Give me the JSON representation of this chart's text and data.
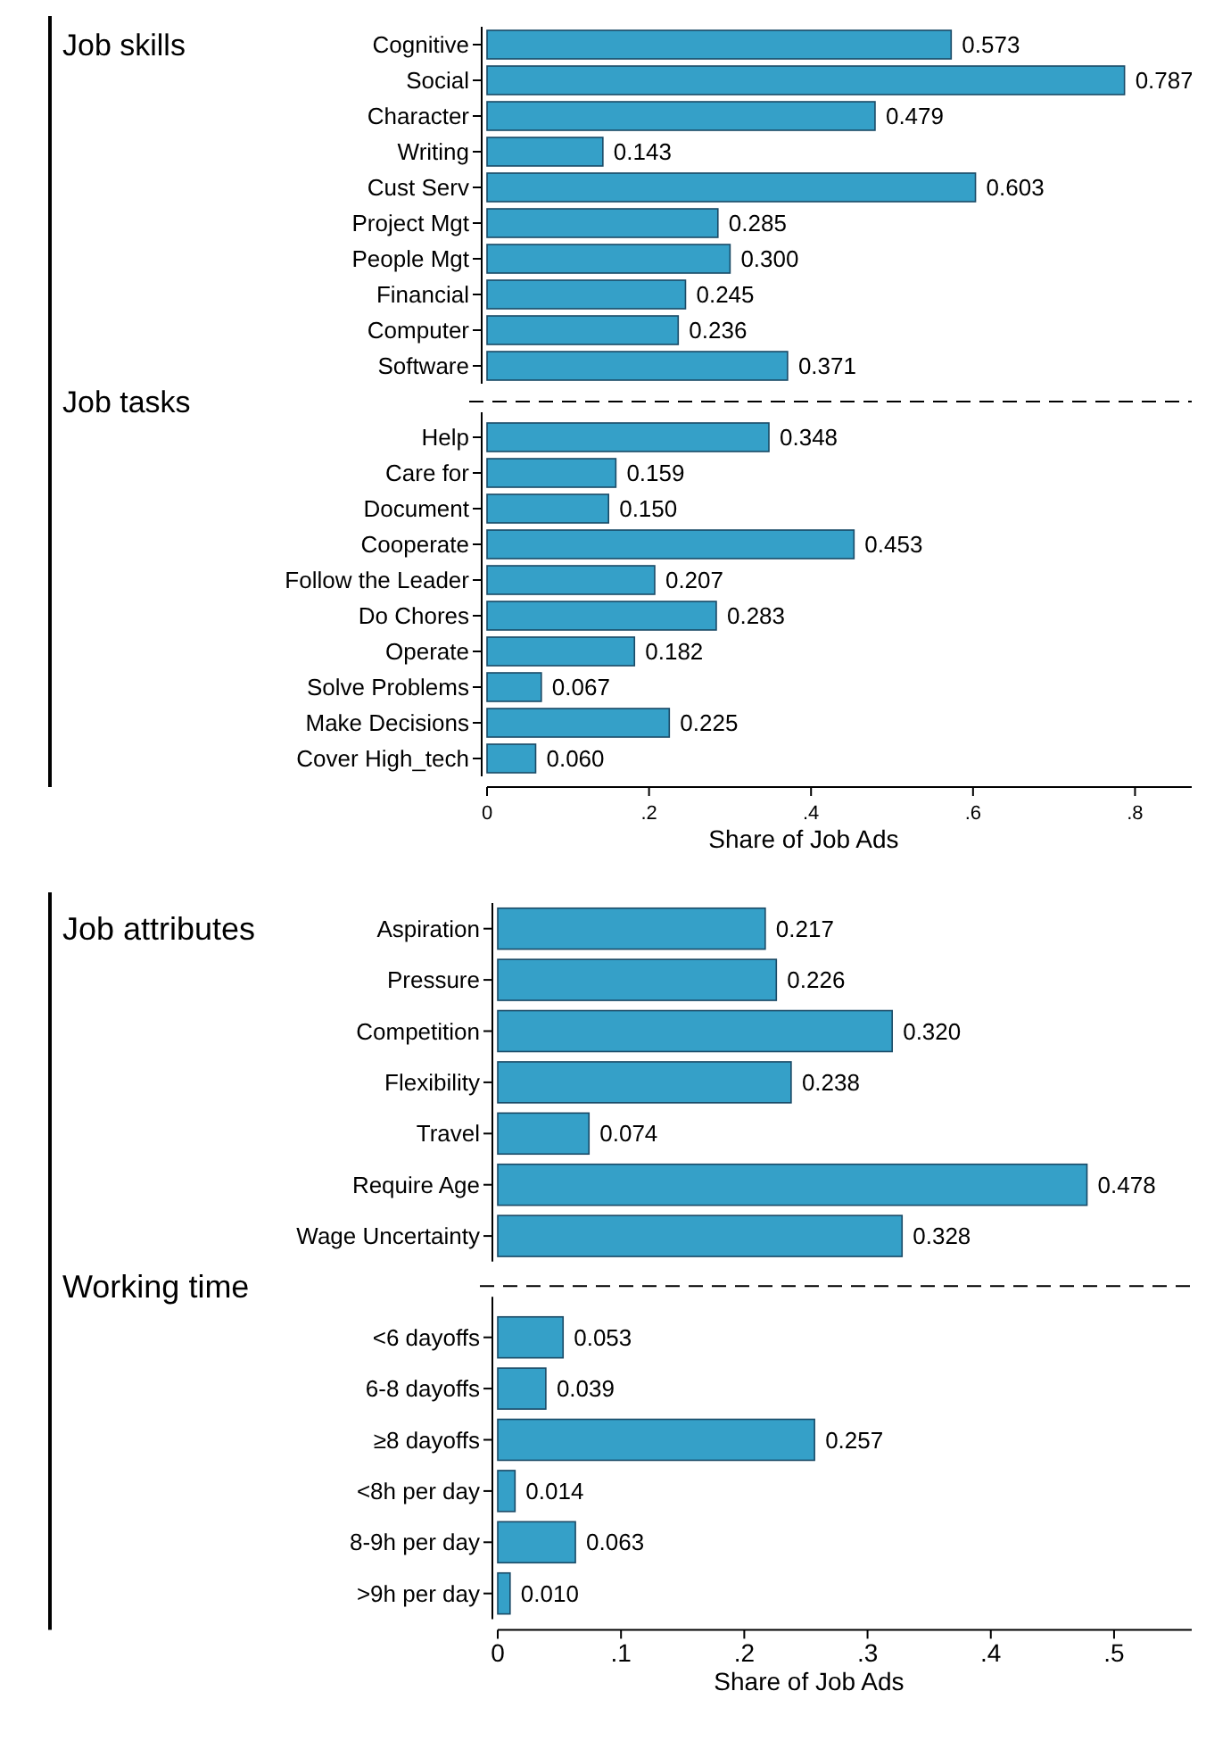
{
  "chart_data": [
    {
      "type": "bar",
      "orientation": "horizontal",
      "title": "Job skills",
      "color": "#35a0c8",
      "tick_labels": "y",
      "categories": [
        "Cognitive",
        "Social",
        "Character",
        "Writing",
        "Cust Serv",
        "Project Mgt",
        "People Mgt",
        "Financial",
        "Computer",
        "Software"
      ],
      "values": [
        0.573,
        0.787,
        0.479,
        0.143,
        0.603,
        0.285,
        0.3,
        0.245,
        0.236,
        0.371
      ],
      "value_labels": [
        "0.573",
        "0.787",
        "0.479",
        "0.143",
        "0.603",
        "0.285",
        "0.300",
        "0.245",
        "0.236",
        "0.371"
      ]
    },
    {
      "type": "bar",
      "orientation": "horizontal",
      "title": "Job tasks",
      "xlabel": "Share of Job Ads",
      "color": "#35a0c8",
      "xlim": [
        0,
        0.87
      ],
      "xticks": [
        0,
        {
          "value": 0.2,
          "label": ".2"
        },
        {
          "value": 0.4,
          "label": ".4"
        },
        {
          "value": 0.6,
          "label": ".6"
        },
        {
          "value": 0.8,
          "label": ".8"
        }
      ],
      "categories": [
        "Help",
        "Care for",
        "Document",
        "Cooperate",
        "Follow the Leader",
        "Do Chores",
        "Operate",
        "Solve Problems",
        "Make Decisions",
        "Cover High_tech"
      ],
      "values": [
        0.348,
        0.159,
        0.15,
        0.453,
        0.207,
        0.283,
        0.182,
        0.067,
        0.225,
        0.06
      ],
      "value_labels": [
        "0.348",
        "0.159",
        "0.150",
        "0.453",
        "0.207",
        "0.283",
        "0.182",
        "0.067",
        "0.225",
        "0.060"
      ]
    },
    {
      "type": "bar",
      "orientation": "horizontal",
      "title": "Job attributes",
      "color": "#35a0c8",
      "tick_labels": "y",
      "categories": [
        "Aspiration",
        "Pressure",
        "Competition",
        "Flexibility",
        "Travel",
        "Require Age",
        "Wage Uncertainty"
      ],
      "values": [
        0.217,
        0.226,
        0.32,
        0.238,
        0.074,
        0.478,
        0.328
      ],
      "value_labels": [
        "0.217",
        "0.226",
        "0.320",
        "0.238",
        "0.074",
        "0.478",
        "0.328"
      ]
    },
    {
      "type": "bar",
      "orientation": "horizontal",
      "title": "Working time",
      "xlabel": "Share of Job Ads",
      "color": "#35a0c8",
      "xlim": [
        0,
        0.563
      ],
      "xticks": [
        0,
        {
          "value": 0.1,
          "label": ".1"
        },
        {
          "value": 0.2,
          "label": ".2"
        },
        {
          "value": 0.3,
          "label": ".3"
        },
        {
          "value": 0.4,
          "label": ".4"
        },
        {
          "value": 0.5,
          "label": ".5"
        }
      ],
      "categories": [
        "<6 dayoffs",
        "6-8 dayoffs",
        "≥8 dayoffs",
        "<8h per day",
        "8-9h per day",
        ">9h per day"
      ],
      "values": [
        0.053,
        0.039,
        0.257,
        0.014,
        0.063,
        0.01
      ],
      "value_labels": [
        "0.053",
        "0.039",
        "0.257",
        "0.014",
        "0.063",
        "0.010"
      ]
    }
  ]
}
